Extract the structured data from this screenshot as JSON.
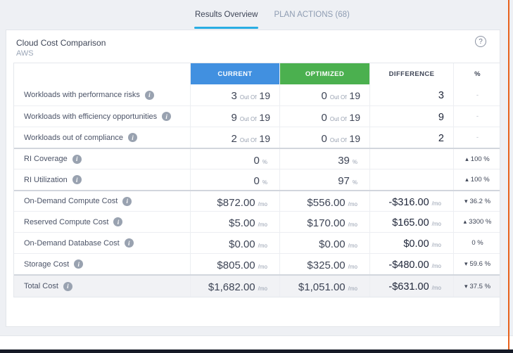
{
  "tabs": {
    "results_overview": "Results Overview",
    "plan_actions": "PLAN ACTIONS (68)"
  },
  "card": {
    "title": "Cloud Cost Comparison",
    "subtitle": "AWS",
    "help_label": "?"
  },
  "table": {
    "headers": {
      "current": "CURRENT",
      "optimized": "OPTIMIZED",
      "difference": "DIFFERENCE",
      "percent": "%"
    },
    "rows": [
      {
        "label": "Workloads with performance risks",
        "current": {
          "main": "3",
          "unit": "Out Of",
          "after": "19"
        },
        "optimized": {
          "main": "0",
          "unit": "Out Of",
          "after": "19"
        },
        "difference": {
          "main": "3"
        },
        "percent": {
          "text": "-"
        },
        "group_start": false,
        "total": false
      },
      {
        "label": "Workloads with efficiency opportunities",
        "current": {
          "main": "9",
          "unit": "Out Of",
          "after": "19"
        },
        "optimized": {
          "main": "0",
          "unit": "Out Of",
          "after": "19"
        },
        "difference": {
          "main": "9"
        },
        "percent": {
          "text": "-"
        },
        "group_start": false,
        "total": false
      },
      {
        "label": "Workloads out of compliance",
        "current": {
          "main": "2",
          "unit": "Out Of",
          "after": "19"
        },
        "optimized": {
          "main": "0",
          "unit": "Out Of",
          "after": "19"
        },
        "difference": {
          "main": "2"
        },
        "percent": {
          "text": "-"
        },
        "group_start": false,
        "total": false
      },
      {
        "label": "RI Coverage",
        "current": {
          "main": "0",
          "unit": "%"
        },
        "optimized": {
          "main": "39",
          "unit": "%"
        },
        "difference": {},
        "percent": {
          "arrow": "up",
          "text": "100 %"
        },
        "group_start": true,
        "total": false
      },
      {
        "label": "RI Utilization",
        "current": {
          "main": "0",
          "unit": "%"
        },
        "optimized": {
          "main": "97",
          "unit": "%"
        },
        "difference": {},
        "percent": {
          "arrow": "up",
          "text": "100 %"
        },
        "group_start": false,
        "total": false
      },
      {
        "label": "On-Demand Compute Cost",
        "current": {
          "main": "$872.00",
          "unit": "/mo"
        },
        "optimized": {
          "main": "$556.00",
          "unit": "/mo"
        },
        "difference": {
          "main": "-$316.00",
          "unit": "/mo"
        },
        "percent": {
          "arrow": "down",
          "text": "36.2 %"
        },
        "group_start": true,
        "total": false
      },
      {
        "label": "Reserved Compute Cost",
        "current": {
          "main": "$5.00",
          "unit": "/mo"
        },
        "optimized": {
          "main": "$170.00",
          "unit": "/mo"
        },
        "difference": {
          "main": "$165.00",
          "unit": "/mo"
        },
        "percent": {
          "arrow": "up",
          "text": "3300 %"
        },
        "group_start": false,
        "total": false
      },
      {
        "label": "On-Demand Database Cost",
        "current": {
          "main": "$0.00",
          "unit": "/mo"
        },
        "optimized": {
          "main": "$0.00",
          "unit": "/mo"
        },
        "difference": {
          "main": "$0.00",
          "unit": "/mo"
        },
        "percent": {
          "text": "0 %"
        },
        "group_start": false,
        "total": false
      },
      {
        "label": "Storage Cost",
        "current": {
          "main": "$805.00",
          "unit": "/mo"
        },
        "optimized": {
          "main": "$325.00",
          "unit": "/mo"
        },
        "difference": {
          "main": "-$480.00",
          "unit": "/mo"
        },
        "percent": {
          "arrow": "down",
          "text": "59.6 %"
        },
        "group_start": false,
        "total": false
      },
      {
        "label": "Total Cost",
        "current": {
          "main": "$1,682.00",
          "unit": "/mo"
        },
        "optimized": {
          "main": "$1,051.00",
          "unit": "/mo"
        },
        "difference": {
          "main": "-$631.00",
          "unit": "/mo"
        },
        "percent": {
          "arrow": "down",
          "text": "37.5 %"
        },
        "group_start": false,
        "total": true
      }
    ]
  },
  "colors": {
    "current_header": "#4190e0",
    "optimized_header": "#4bb04f",
    "active_tab_underline": "#29ade3",
    "page_background": "#eef0f4",
    "total_row_background": "#f1f2f5",
    "accent_orange_line": "#e8611c",
    "bottom_bar": "#151a26"
  }
}
